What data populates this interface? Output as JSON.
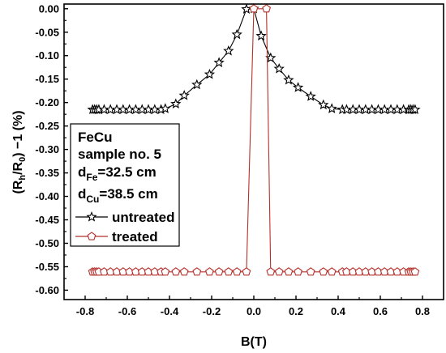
{
  "chart_data": {
    "type": "line",
    "xlabel": "B(T)",
    "ylabel_parts": [
      "(R",
      "h",
      "/R",
      "0",
      ") −1 (%)"
    ],
    "xlim": [
      -0.9,
      0.9
    ],
    "ylim": [
      -0.62,
      0.01
    ],
    "x_ticks": [
      -0.8,
      -0.6,
      -0.4,
      -0.2,
      0.0,
      0.2,
      0.4,
      0.6,
      0.8
    ],
    "x_tick_labels": [
      "-0.8",
      "-0.6",
      "-0.4",
      "-0.2",
      "0.0",
      "0.2",
      "0.4",
      "0.6",
      "0.8"
    ],
    "y_ticks": [
      0.0,
      -0.05,
      -0.1,
      -0.15,
      -0.2,
      -0.25,
      -0.3,
      -0.35,
      -0.4,
      -0.45,
      -0.5,
      -0.55,
      -0.6
    ],
    "y_tick_labels": [
      "0.00",
      "-0.05",
      "-0.10",
      "-0.15",
      "-0.20",
      "-0.25",
      "-0.30",
      "-0.35",
      "-0.40",
      "-0.45",
      "-0.50",
      "-0.55",
      "-0.60"
    ],
    "info_box": {
      "line1": "FeCu",
      "line2": "sample no. 5",
      "line3_main": "d",
      "line3_sub": "Fe",
      "line3_rest": "=32.5 cm",
      "line4_main": "d",
      "line4_sub": "Cu",
      "line4_rest": "=38.5 cm"
    },
    "legend_placement": "left",
    "series": [
      {
        "name": "untreated",
        "color": "#000000",
        "marker": "star",
        "x": [
          -0.765,
          -0.755,
          -0.745,
          -0.735,
          -0.71,
          -0.68,
          -0.65,
          -0.62,
          -0.59,
          -0.56,
          -0.53,
          -0.5,
          -0.47,
          -0.44,
          -0.42,
          -0.37,
          -0.33,
          -0.27,
          -0.21,
          -0.165,
          -0.12,
          -0.08,
          -0.035,
          0.0,
          0.035,
          0.08,
          0.12,
          0.165,
          0.21,
          0.27,
          0.33,
          0.37,
          0.42,
          0.44,
          0.47,
          0.5,
          0.53,
          0.56,
          0.59,
          0.62,
          0.65,
          0.68,
          0.71,
          0.735,
          0.745,
          0.755,
          0.765
        ],
        "y": [
          -0.215,
          -0.215,
          -0.215,
          -0.215,
          -0.215,
          -0.215,
          -0.215,
          -0.215,
          -0.215,
          -0.215,
          -0.215,
          -0.215,
          -0.215,
          -0.215,
          -0.213,
          -0.203,
          -0.185,
          -0.162,
          -0.14,
          -0.115,
          -0.09,
          -0.055,
          -0.001,
          0.0,
          -0.058,
          -0.105,
          -0.128,
          -0.152,
          -0.168,
          -0.187,
          -0.205,
          -0.213,
          -0.215,
          -0.215,
          -0.215,
          -0.215,
          -0.215,
          -0.215,
          -0.215,
          -0.215,
          -0.215,
          -0.215,
          -0.215,
          -0.215,
          -0.215,
          -0.215,
          -0.215
        ]
      },
      {
        "name": "treated",
        "color": "#b5302b",
        "marker": "pentagon",
        "x": [
          -0.765,
          -0.755,
          -0.745,
          -0.735,
          -0.71,
          -0.68,
          -0.65,
          -0.62,
          -0.59,
          -0.56,
          -0.53,
          -0.5,
          -0.47,
          -0.44,
          -0.42,
          -0.37,
          -0.33,
          -0.27,
          -0.21,
          -0.165,
          -0.12,
          -0.08,
          -0.035,
          0.0,
          0.06,
          0.08,
          0.12,
          0.165,
          0.21,
          0.27,
          0.33,
          0.37,
          0.42,
          0.44,
          0.47,
          0.5,
          0.53,
          0.56,
          0.59,
          0.62,
          0.65,
          0.68,
          0.71,
          0.735,
          0.745,
          0.755,
          0.765
        ],
        "y": [
          -0.561,
          -0.561,
          -0.561,
          -0.561,
          -0.561,
          -0.561,
          -0.561,
          -0.561,
          -0.561,
          -0.561,
          -0.561,
          -0.561,
          -0.561,
          -0.561,
          -0.561,
          -0.561,
          -0.561,
          -0.561,
          -0.561,
          -0.561,
          -0.561,
          -0.561,
          -0.561,
          0.0,
          0.0,
          -0.561,
          -0.561,
          -0.561,
          -0.561,
          -0.561,
          -0.561,
          -0.561,
          -0.561,
          -0.561,
          -0.561,
          -0.561,
          -0.561,
          -0.561,
          -0.561,
          -0.561,
          -0.561,
          -0.561,
          -0.561,
          -0.561,
          -0.561,
          -0.561,
          -0.561
        ]
      }
    ]
  }
}
